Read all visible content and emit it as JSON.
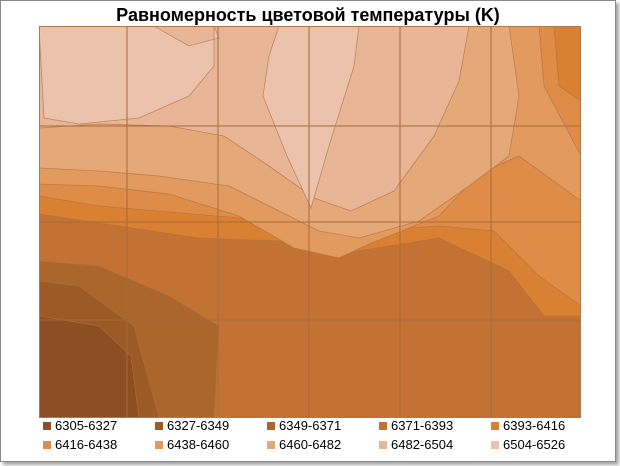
{
  "chart_data": {
    "type": "contour",
    "title": "Равномерность цветовой температуры (K)",
    "xlabel": "",
    "ylabel": "",
    "grid": true,
    "legend_position": "bottom",
    "levels": [
      {
        "label": "6305-6327",
        "color": "#8c4f22"
      },
      {
        "label": "6327-6349",
        "color": "#9b5a26"
      },
      {
        "label": "6349-6371",
        "color": "#aa662b"
      },
      {
        "label": "6371-6393",
        "color": "#c27232"
      },
      {
        "label": "6393-6416",
        "color": "#d98033"
      },
      {
        "label": "6416-6438",
        "color": "#de8c47"
      },
      {
        "label": "6438-6460",
        "color": "#e29a5e"
      },
      {
        "label": "6460-6482",
        "color": "#e5a879"
      },
      {
        "label": "6482-6504",
        "color": "#e8b696"
      },
      {
        "label": "6504-6526",
        "color": "#ebc2ab"
      }
    ]
  }
}
